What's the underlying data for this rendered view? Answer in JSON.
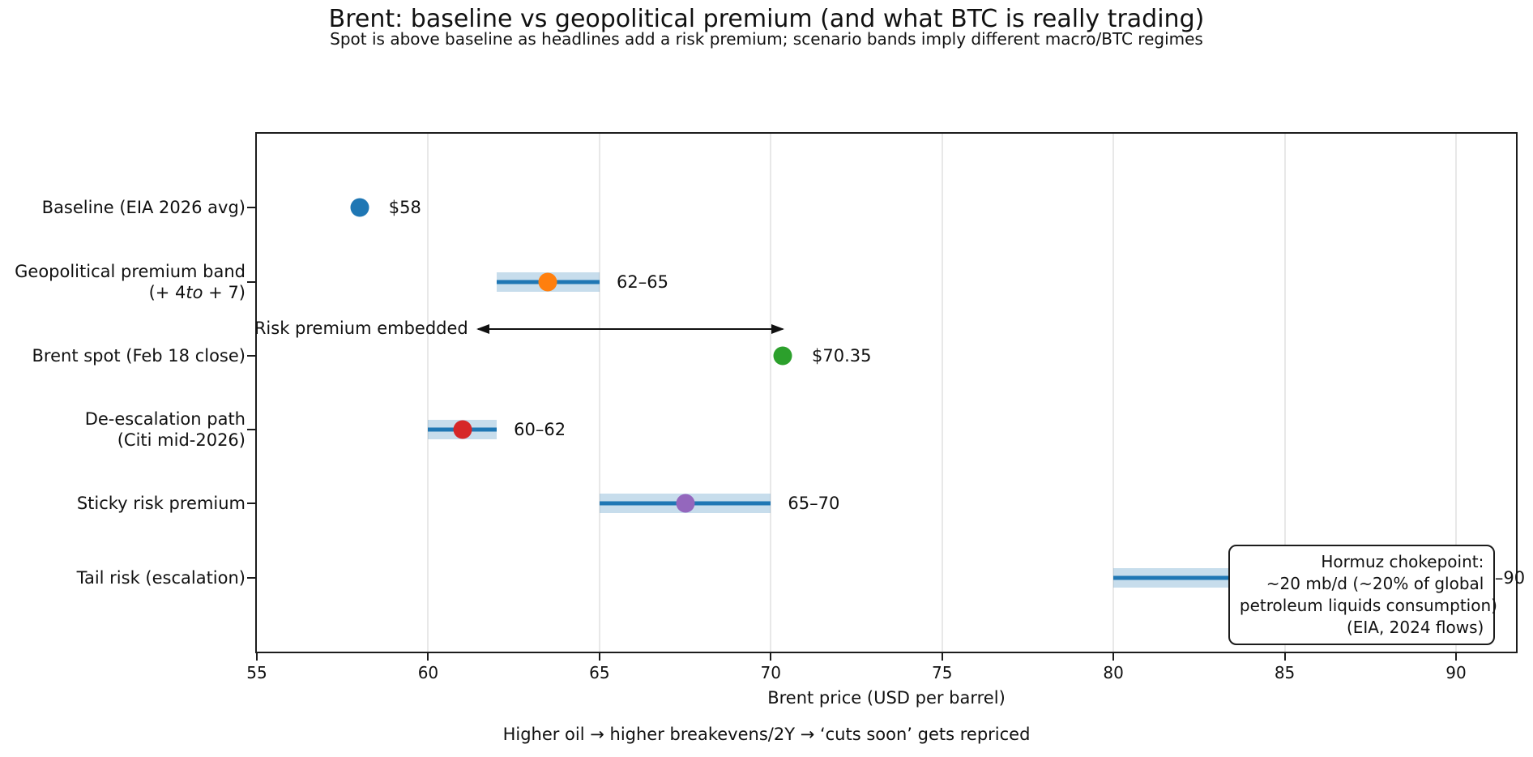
{
  "chart_data": {
    "type": "scatter",
    "title": "Brent: baseline vs geopolitical premium (and what BTC is really trading)",
    "subtitle": "Spot is above baseline as headlines add a risk premium; scenario bands imply different macro/BTC regimes",
    "xlabel": "Brent price (USD per barrel)",
    "footer": "Higher oil → higher breakevens/2Y → ‘cuts soon’ gets repriced",
    "xlim": [
      55,
      91.75
    ],
    "xticks": [
      55,
      60,
      65,
      70,
      75,
      80,
      85,
      90
    ],
    "grid": "vertical",
    "band_fill_color": "rgba(31,119,180,0.25)",
    "band_line_color": "#1f77b4",
    "rows": [
      {
        "category_lines": [
          [
            {
              "text": "Baseline (EIA 2026 avg)"
            }
          ]
        ],
        "value": 58,
        "band": null,
        "dot_color": "#1f77b4",
        "annotation": "$58"
      },
      {
        "category_lines": [
          [
            {
              "text": "Geopolitical premium band"
            }
          ],
          [
            {
              "text": "(+ 4"
            },
            {
              "text": "to",
              "italic": true
            },
            {
              "text": " + 7)"
            }
          ]
        ],
        "value": 63.5,
        "band": [
          62,
          65
        ],
        "dot_color": "#ff7f0e",
        "annotation": "62–65"
      },
      {
        "category_lines": [
          [
            {
              "text": "Brent spot (Feb 18 close)"
            }
          ]
        ],
        "value": 70.35,
        "band": null,
        "dot_color": "#2ca02c",
        "annotation": "$70.35"
      },
      {
        "category_lines": [
          [
            {
              "text": "De-escalation path"
            }
          ],
          [
            {
              "text": "(Citi mid-2026)"
            }
          ]
        ],
        "value": 61,
        "band": [
          60,
          62
        ],
        "dot_color": "#d62728",
        "annotation": "60–62"
      },
      {
        "category_lines": [
          [
            {
              "text": "Sticky risk premium"
            }
          ]
        ],
        "value": 67.5,
        "band": [
          65,
          70
        ],
        "dot_color": "#9467bd",
        "annotation": "65–70"
      },
      {
        "category_lines": [
          [
            {
              "text": "Tail risk (escalation)"
            }
          ]
        ],
        "value": 85,
        "band": [
          80,
          90
        ],
        "dot_color": "#8c564b",
        "annotation": "80–90"
      }
    ],
    "arrow_annotation": {
      "label": "Risk premium embedded",
      "from_x": 61.45,
      "to_x": 70.35
    },
    "note_box": {
      "lines": [
        "Hormuz chokepoint:",
        "~20 mb/d (~20% of global",
        "petroleum liquids consumption)",
        "(EIA, 2024 flows)"
      ]
    }
  }
}
